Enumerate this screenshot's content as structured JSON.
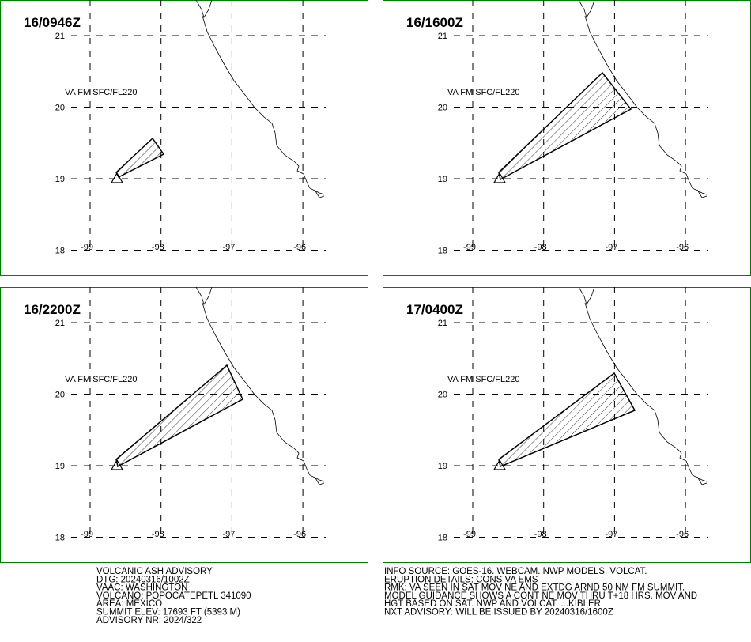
{
  "panels": [
    {
      "time": "16/0946Z",
      "label": "VA FM SFC/FL220"
    },
    {
      "time": "16/1600Z",
      "label": "VA FM SFC/FL220"
    },
    {
      "time": "16/2200Z",
      "label": "VA FM SFC/FL220"
    },
    {
      "time": "17/0400Z",
      "label": "VA FM SFC/FL220"
    }
  ],
  "lat_ticks": [
    21,
    20,
    19,
    18
  ],
  "lon_ticks": [
    -99,
    -98,
    -97,
    -96
  ],
  "advisory": {
    "left": [
      "VOLCANIC ASH ADVISORY",
      "DTG: 20240316/1002Z",
      "VAAC: WASHINGTON",
      "VOLCANO: POPOCATEPETL 341090",
      "AREA: MEXICO",
      "SUMMIT ELEV: 17693 FT (5393 M)",
      "ADVISORY NR: 2024/322"
    ],
    "right": [
      "INFO SOURCE: GOES-16. WEBCAM. NWP MODELS. VOLCAT.",
      "ERUPTION DETAILS: CONS VA EMS",
      "RMK: VA SEEN IN SAT MOV NE AND EXTDG ARND 50 NM FM SUMMIT.",
      "MODEL GUIDANCE SHOWS A CONT NE MOV THRU T+18 HRS. MOV AND",
      "HGT BASED ON SAT. NWP AND VOLCAT. ...KIBLER",
      "NXT ADVISORY: WILL BE ISSUED BY 20240316/1600Z"
    ]
  }
}
